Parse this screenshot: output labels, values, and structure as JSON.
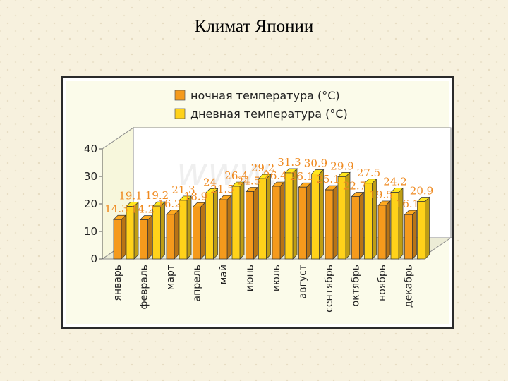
{
  "slide": {
    "title": "Климат Японии"
  },
  "watermark": "www.",
  "chart_data": {
    "type": "bar",
    "categories": [
      "январь",
      "февраль",
      "март",
      "апрель",
      "май",
      "июнь",
      "июль",
      "август",
      "сентябрь",
      "октябрь",
      "ноябрь",
      "декабрь"
    ],
    "series": [
      {
        "name": "ночная температура (°C)",
        "color": "#f59a1c",
        "values": [
          14.3,
          14.2,
          16.2,
          18.9,
          21.5,
          24.5,
          26.4,
          26.1,
          25.1,
          22.7,
          19.5,
          16.1
        ]
      },
      {
        "name": "дневная температура (°C)",
        "color": "#ffd21a",
        "values": [
          19.1,
          19.2,
          21.3,
          24,
          26.4,
          29.2,
          31.3,
          30.9,
          29.9,
          27.5,
          24.2,
          20.9
        ]
      }
    ],
    "ylim": [
      0,
      40
    ],
    "yticks": [
      "0",
      "10",
      "20",
      "30",
      "40"
    ],
    "grid": false,
    "legend_position": "top",
    "data_labels": {
      "color": "#ef8a20",
      "night": [
        "14.3",
        "14.2",
        "16.2",
        "18.9",
        "21.5",
        "24.5",
        "26.4",
        "26.1",
        "25.1",
        "22.7",
        "19.5",
        "16.1"
      ],
      "day": [
        "19.1",
        "19.2",
        "21.3",
        "24",
        "26.4",
        "29.2",
        "31.3",
        "30.9",
        "29.9",
        "27.5",
        "24.2",
        "20.9"
      ]
    }
  }
}
